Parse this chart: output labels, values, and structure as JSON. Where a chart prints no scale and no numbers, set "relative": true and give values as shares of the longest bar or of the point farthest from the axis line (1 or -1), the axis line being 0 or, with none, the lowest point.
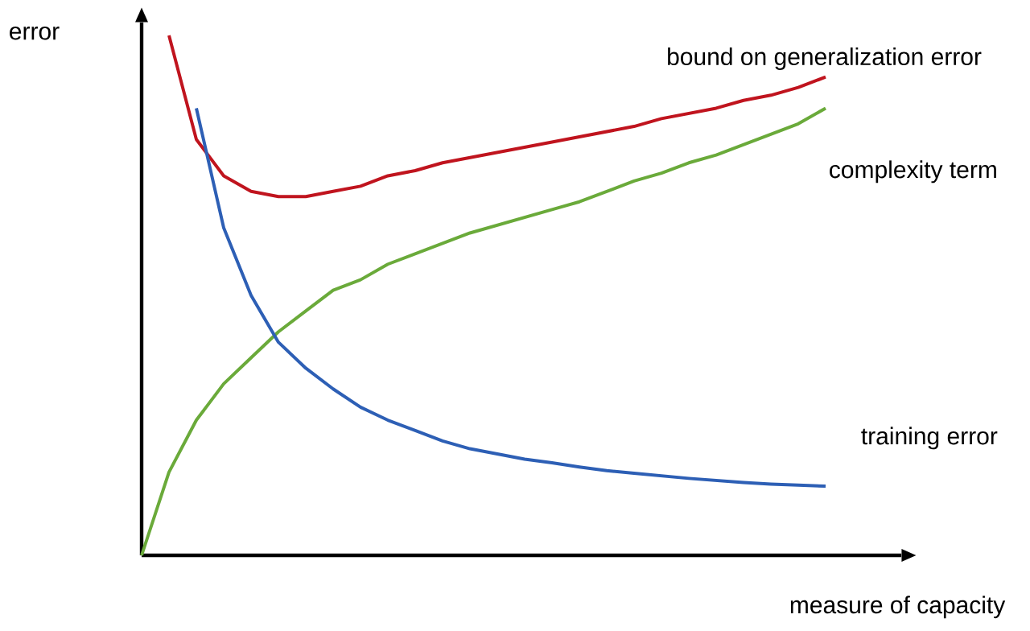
{
  "chart_data": {
    "type": "line",
    "relative": true,
    "xlabel": "measure of capacity",
    "ylabel": "error",
    "marker": "none",
    "line_style": "solid",
    "categories": [
      null,
      null,
      null,
      null,
      null,
      null,
      null,
      null,
      null,
      null,
      null,
      null,
      null,
      null,
      null,
      null,
      null,
      null,
      null,
      null,
      null,
      null,
      null,
      null,
      null,
      null
    ],
    "series": [
      {
        "name": "bound on generalization error",
        "color": "#c0141e",
        "values": [
          null,
          1.0,
          0.8,
          0.73,
          0.7,
          0.69,
          0.69,
          0.7,
          0.71,
          0.73,
          0.74,
          0.755,
          0.765,
          0.775,
          0.785,
          0.795,
          0.805,
          0.815,
          0.825,
          0.84,
          0.85,
          0.86,
          0.875,
          0.885,
          0.9,
          0.92
        ]
      },
      {
        "name": "complexity term",
        "color": "#6aaa3a",
        "values": [
          0,
          0.16,
          0.26,
          0.33,
          0.38,
          0.43,
          0.47,
          0.51,
          0.53,
          0.56,
          0.58,
          0.6,
          0.62,
          0.635,
          0.65,
          0.665,
          0.68,
          0.7,
          0.72,
          0.735,
          0.755,
          0.77,
          0.79,
          0.81,
          0.83,
          0.86
        ]
      },
      {
        "name": "training error",
        "color": "#2d5fb5",
        "values": [
          null,
          null,
          0.86,
          0.63,
          0.5,
          0.41,
          0.36,
          0.32,
          0.285,
          0.26,
          0.24,
          0.22,
          0.205,
          0.195,
          0.185,
          0.178,
          0.17,
          0.163,
          0.158,
          0.153,
          0.148,
          0.144,
          0.14,
          0.137,
          0.135,
          0.133
        ]
      }
    ]
  }
}
